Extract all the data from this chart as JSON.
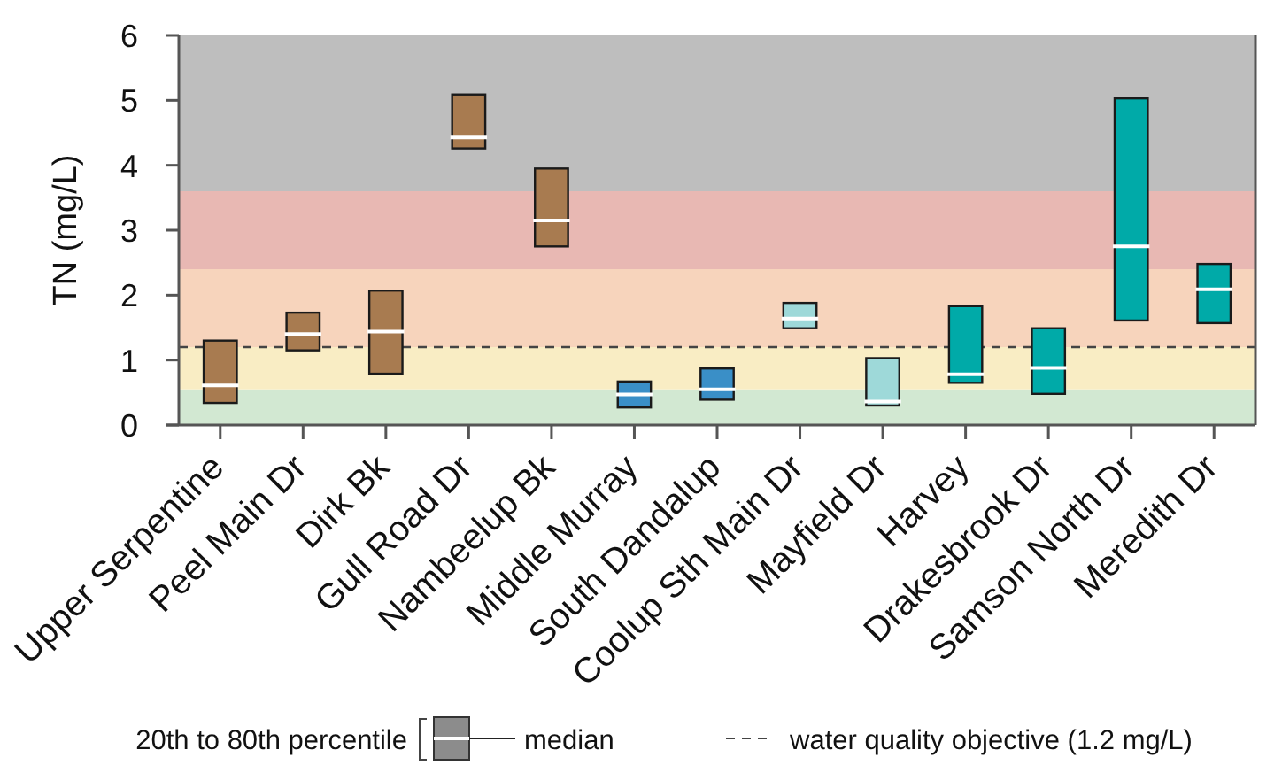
{
  "chart_data": {
    "type": "box",
    "ylabel": "TN (mg/L)",
    "categories": [
      "Upper Serpentine",
      "Peel Main Dr",
      "Dirk Bk",
      "Gull Road Dr",
      "Nambeelup Bk",
      "Middle Murray",
      "South Dandalup",
      "Coolup Sth Main Dr",
      "Mayfield Dr",
      "Harvey",
      "Drakesbrook Dr",
      "Samson North Dr",
      "Meredith Dr"
    ],
    "boxes": [
      {
        "low": 0.34,
        "q1": 0.34,
        "median": 0.61,
        "q3": 1.3,
        "high": 1.3
      },
      {
        "low": 1.15,
        "q1": 1.15,
        "median": 1.4,
        "q3": 1.73,
        "high": 1.73
      },
      {
        "low": 0.79,
        "q1": 0.79,
        "median": 1.44,
        "q3": 2.07,
        "high": 2.07
      },
      {
        "low": 4.26,
        "q1": 4.26,
        "median": 4.43,
        "q3": 5.09,
        "high": 5.09
      },
      {
        "low": 2.75,
        "q1": 2.75,
        "median": 3.15,
        "q3": 3.95,
        "high": 3.95
      },
      {
        "low": 0.27,
        "q1": 0.27,
        "median": 0.47,
        "q3": 0.67,
        "high": 0.67
      },
      {
        "low": 0.39,
        "q1": 0.39,
        "median": 0.55,
        "q3": 0.87,
        "high": 0.87
      },
      {
        "low": 1.49,
        "q1": 1.49,
        "median": 1.64,
        "q3": 1.88,
        "high": 1.88
      },
      {
        "low": 0.3,
        "q1": 0.3,
        "median": 0.36,
        "q3": 1.03,
        "high": 1.03
      },
      {
        "low": 0.65,
        "q1": 0.65,
        "median": 0.78,
        "q3": 1.83,
        "high": 1.83
      },
      {
        "low": 0.48,
        "q1": 0.48,
        "median": 0.88,
        "q3": 1.49,
        "high": 1.49
      },
      {
        "low": 1.61,
        "q1": 1.61,
        "median": 2.75,
        "q3": 5.03,
        "high": 5.03
      },
      {
        "low": 1.57,
        "q1": 1.57,
        "median": 2.09,
        "q3": 2.48,
        "high": 2.48
      }
    ],
    "colors": [
      "#a87b50",
      "#a87b50",
      "#a87b50",
      "#a87b50",
      "#a87b50",
      "#3a8fc7",
      "#3a8fc7",
      "#9ed9d9",
      "#9ed9d9",
      "#00aaa8",
      "#00aaa8",
      "#00aaa8",
      "#00aaa8"
    ],
    "ylim": [
      0,
      6
    ],
    "yticks": [
      0,
      1,
      2,
      3,
      4,
      5,
      6
    ],
    "bands": [
      {
        "axis": "y",
        "from": 0,
        "to": 0.55,
        "color": "#d2e8d2"
      },
      {
        "axis": "y",
        "from": 0.55,
        "to": 1.2,
        "color": "#f9edc4"
      },
      {
        "axis": "y",
        "from": 1.2,
        "to": 2.4,
        "color": "#f7d4bc"
      },
      {
        "axis": "y",
        "from": 2.4,
        "to": 3.6,
        "color": "#e8b8b3"
      },
      {
        "axis": "y",
        "from": 3.6,
        "to": 6,
        "color": "#bebebe"
      }
    ],
    "ref_lines": [
      {
        "axis": "y",
        "value": 1.2,
        "label": "water quality objective (1.2 mg/L)",
        "line_style": "dashed",
        "color": "#444444"
      }
    ],
    "annotations": [
      "20th to 80th percentile",
      "median"
    ],
    "legend": "bottom"
  }
}
